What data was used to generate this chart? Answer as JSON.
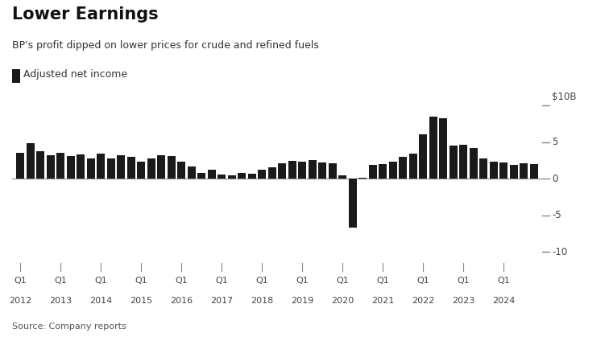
{
  "title": "Lower Earnings",
  "subtitle": "BP's profit dipped on lower prices for crude and refined fuels",
  "legend_label": "Adjusted net income",
  "source": "Source: Company reports",
  "bar_color": "#1a1a1a",
  "background_color": "#ffffff",
  "ylim": [
    -11.5,
    11.5
  ],
  "yticks": [
    -10,
    -5,
    0,
    5
  ],
  "ytick_labels": [
    "-10",
    "-5",
    "0",
    "5"
  ],
  "ylabel_top": "$10B",
  "values": [
    3.5,
    4.8,
    3.7,
    3.2,
    3.5,
    3.1,
    3.3,
    2.8,
    3.4,
    2.8,
    3.2,
    3.0,
    2.3,
    2.7,
    3.2,
    3.1,
    2.3,
    1.7,
    0.8,
    1.2,
    0.6,
    0.5,
    0.8,
    0.7,
    1.2,
    1.5,
    2.1,
    2.4,
    2.3,
    2.5,
    2.2,
    2.1,
    0.4,
    -6.7,
    0.1,
    1.9,
    2.0,
    2.3,
    3.0,
    3.4,
    6.0,
    8.5,
    8.2,
    4.5,
    4.6,
    4.2,
    2.8,
    2.3,
    2.2,
    1.9,
    2.1,
    2.0
  ],
  "xtick_years": [
    2012,
    2013,
    2014,
    2015,
    2016,
    2017,
    2018,
    2019,
    2020,
    2021,
    2022,
    2023,
    2024
  ],
  "title_fontsize": 15,
  "subtitle_fontsize": 9,
  "tick_fontsize": 8.5,
  "source_fontsize": 8
}
